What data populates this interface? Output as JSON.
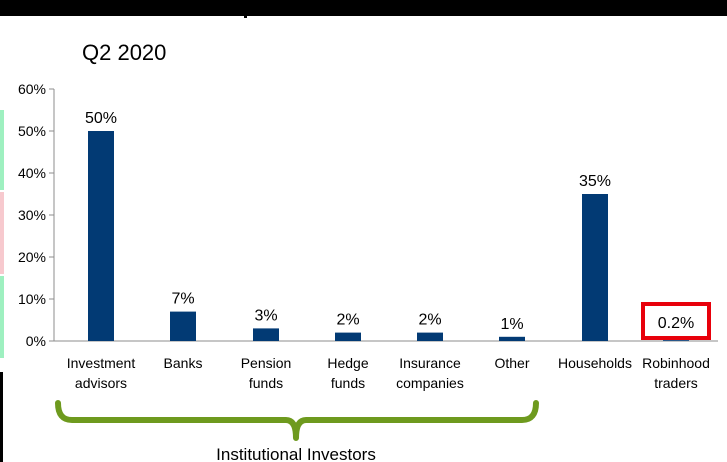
{
  "chart_data": {
    "type": "bar",
    "title": "Q2 2020",
    "categories": [
      [
        "Investment",
        "advisors"
      ],
      [
        "Banks"
      ],
      [
        "Pension",
        "funds"
      ],
      [
        "Hedge",
        "funds"
      ],
      [
        "Insurance",
        "companies"
      ],
      [
        "Other"
      ],
      [
        "Households"
      ],
      [
        "Robinhood",
        "traders"
      ]
    ],
    "values": [
      50,
      7,
      3,
      2,
      2,
      1,
      35,
      0.2
    ],
    "data_labels": [
      "50%",
      "7%",
      "3%",
      "2%",
      "2%",
      "1%",
      "35%",
      "0.2%"
    ],
    "ylim": [
      0,
      60
    ],
    "yticks": [
      0,
      10,
      20,
      30,
      40,
      50,
      60
    ],
    "ytick_labels": [
      "0%",
      "10%",
      "20%",
      "30%",
      "40%",
      "50%",
      "60%"
    ],
    "grid": false,
    "bar_color": "#023a74",
    "highlight_color": "#e8000b",
    "group_color": "#6e9a1e",
    "highlighted_category_index": 7,
    "group_bracket": {
      "label": "Institutional Investors",
      "from_index": 0,
      "to_index": 5
    }
  },
  "colors": {
    "top_bar": "#000000",
    "edge_green": "#9ef0c0",
    "edge_pink": "#f7c9ce"
  }
}
